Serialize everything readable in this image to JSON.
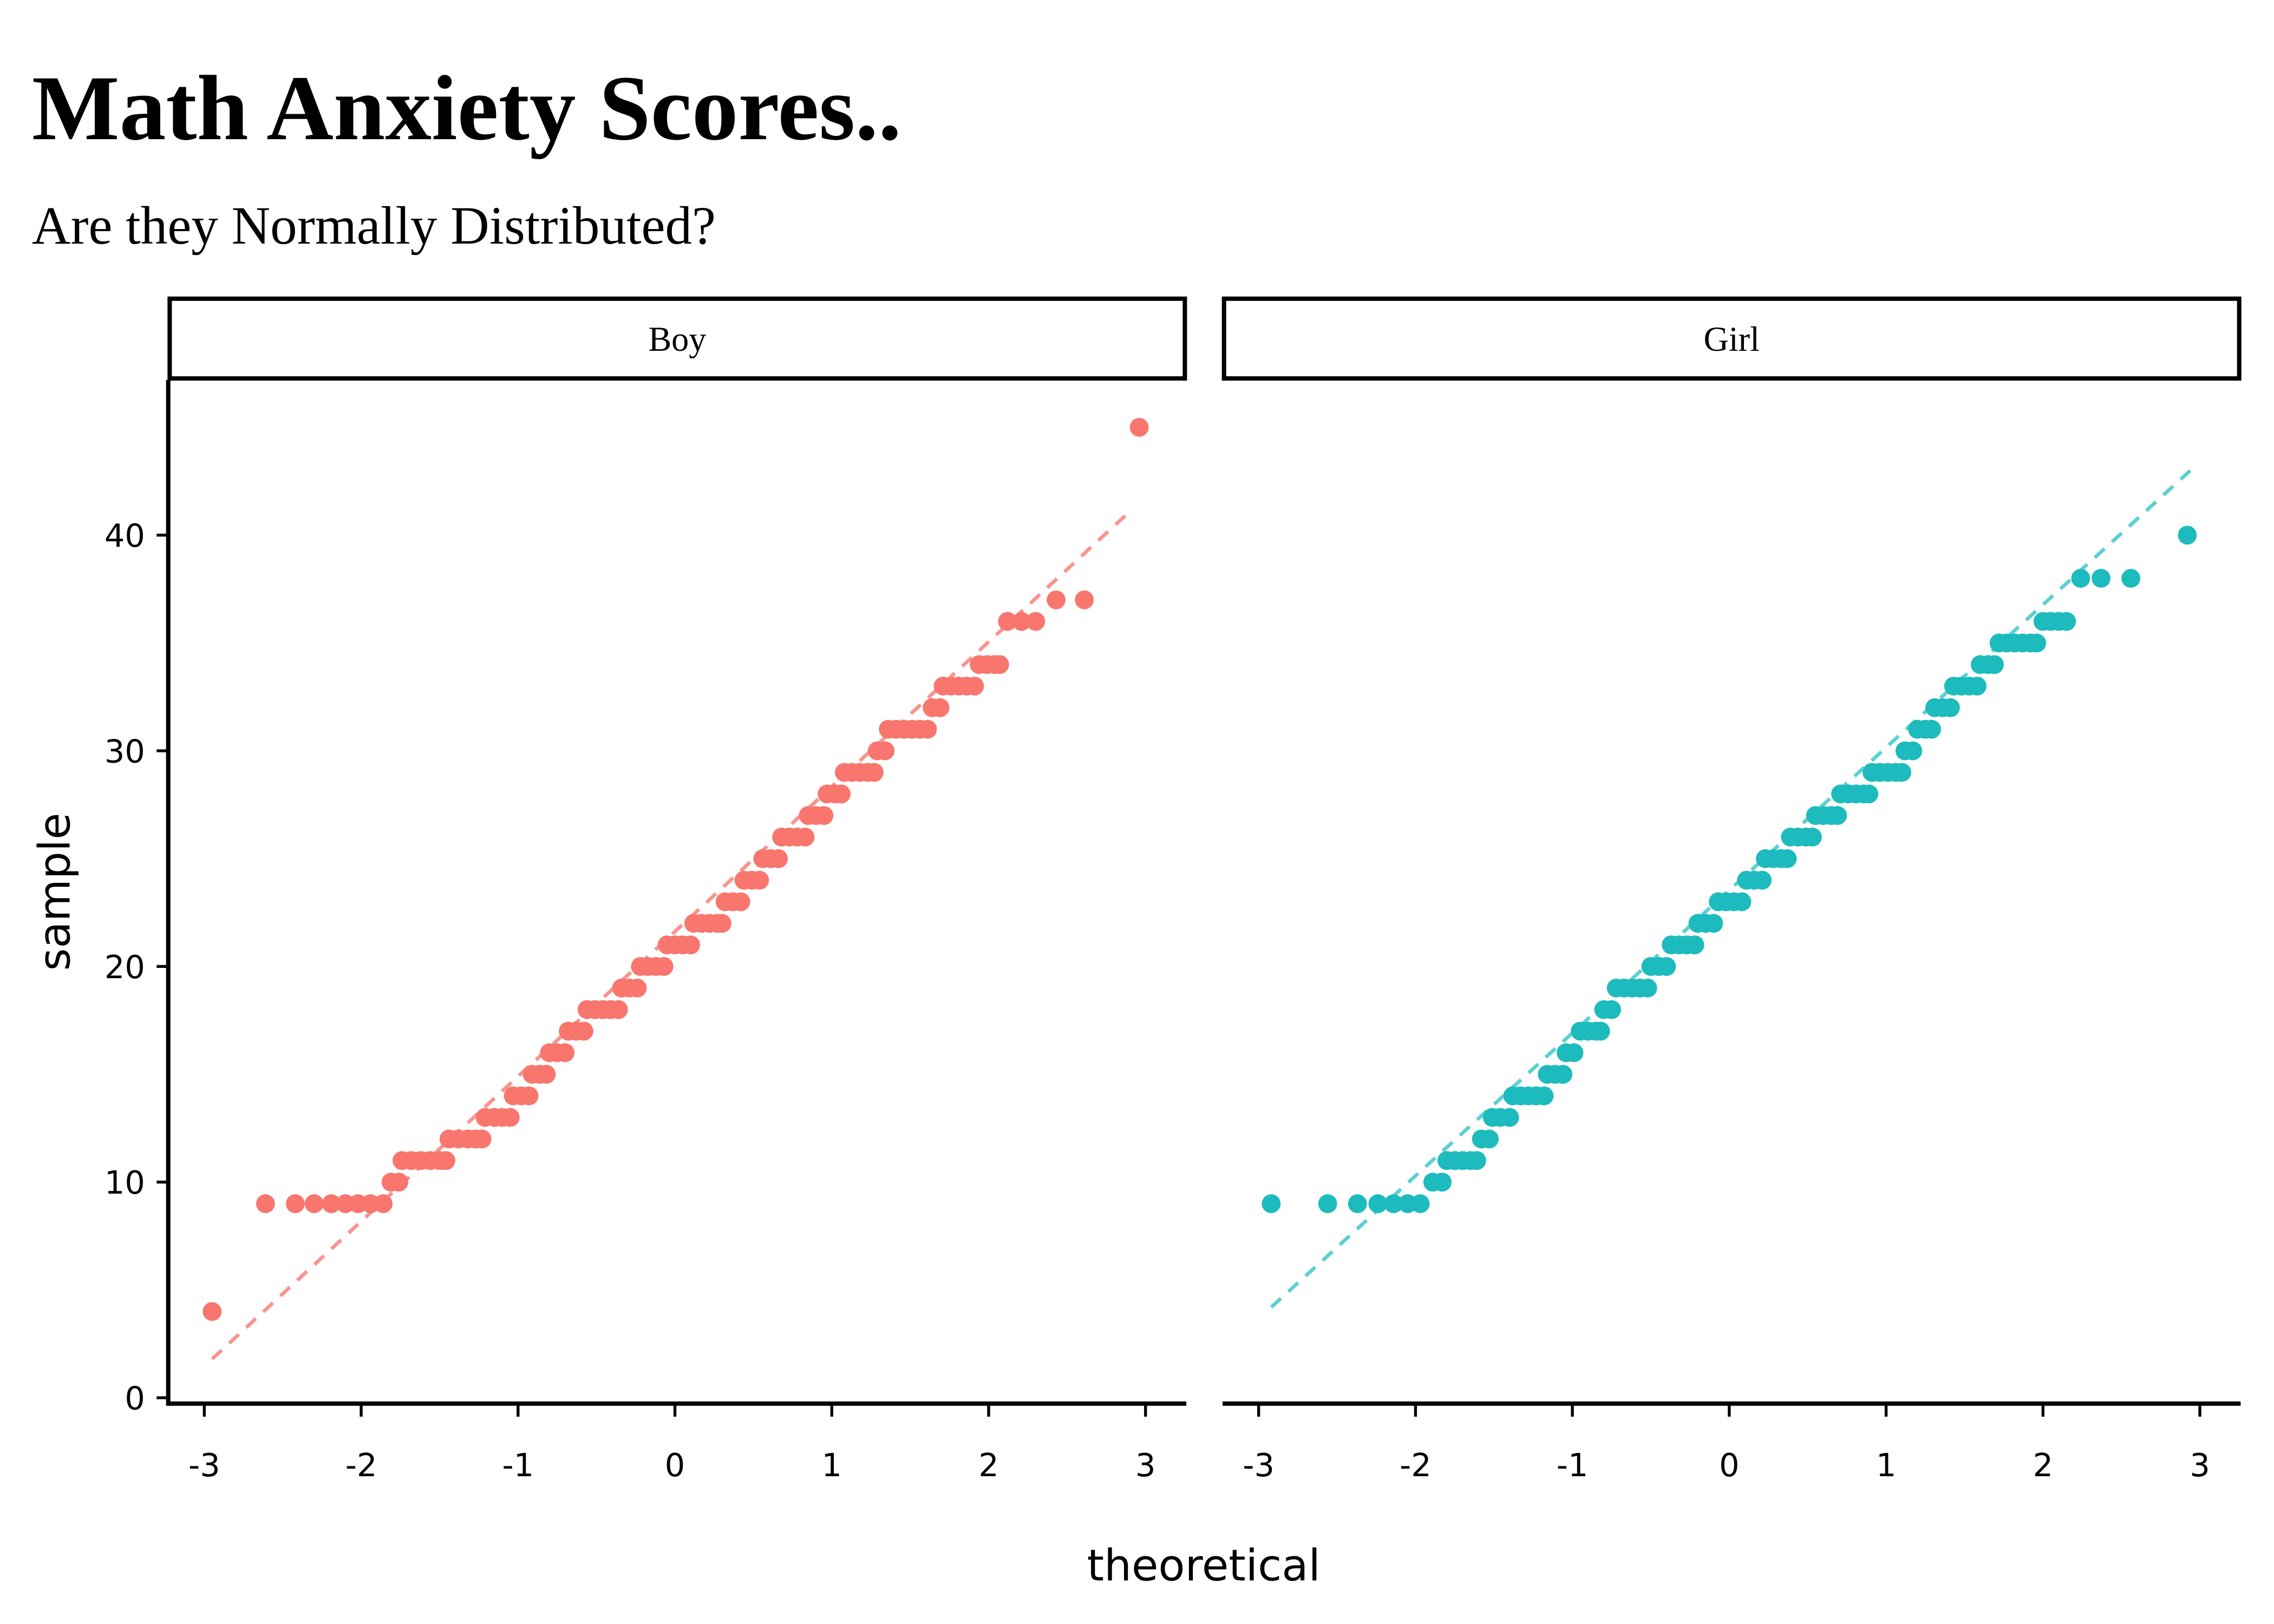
{
  "chart_data": {
    "type": "scatter",
    "title": "Math Anxiety Scores..",
    "subtitle": "Are they Normally Distributed?",
    "x_label": "theoretical",
    "y_label": "sample",
    "xlim": [
      -3.23,
      3.26
    ],
    "ylim": [
      -0.27,
      47.2
    ],
    "xticks": [
      -3,
      -2,
      -1,
      0,
      1,
      2,
      3
    ],
    "yticks": [
      0,
      10,
      20,
      30,
      40
    ],
    "series": [
      {
        "name": "Boy",
        "color": "#F8766D",
        "x": [
          -2.95,
          -2.61,
          -2.42,
          -2.3,
          -2.19,
          -2.1,
          -2.02,
          -1.94,
          -1.86,
          -1.81,
          -1.76,
          -1.74,
          -1.68,
          -1.62,
          -1.56,
          -1.5,
          -1.46,
          -1.44,
          -1.38,
          -1.32,
          -1.27,
          -1.23,
          -1.21,
          -1.15,
          -1.1,
          -1.05,
          -1.03,
          -0.98,
          -0.93,
          -0.91,
          -0.86,
          -0.82,
          -0.8,
          -0.75,
          -0.7,
          -0.68,
          -0.63,
          -0.58,
          -0.56,
          -0.51,
          -0.46,
          -0.41,
          -0.36,
          -0.34,
          -0.29,
          -0.24,
          -0.22,
          -0.17,
          -0.12,
          -0.07,
          -0.05,
          0,
          0.05,
          0.1,
          0.12,
          0.17,
          0.22,
          0.27,
          0.3,
          0.32,
          0.37,
          0.42,
          0.44,
          0.49,
          0.54,
          0.56,
          0.61,
          0.66,
          0.68,
          0.73,
          0.78,
          0.83,
          0.85,
          0.9,
          0.95,
          0.97,
          1.02,
          1.06,
          1.08,
          1.13,
          1.18,
          1.23,
          1.27,
          1.29,
          1.34,
          1.36,
          1.41,
          1.46,
          1.51,
          1.56,
          1.61,
          1.64,
          1.69,
          1.71,
          1.76,
          1.81,
          1.86,
          1.91,
          1.94,
          1.99,
          2.04,
          2.07,
          2.12,
          2.21,
          2.3,
          2.43,
          2.61,
          2.96
        ],
        "values": [
          4,
          9,
          9,
          9,
          9,
          9,
          9,
          9,
          9,
          10,
          10,
          11,
          11,
          11,
          11,
          11,
          11,
          12,
          12,
          12,
          12,
          12,
          13,
          13,
          13,
          13,
          14,
          14,
          14,
          15,
          15,
          15,
          16,
          16,
          16,
          17,
          17,
          17,
          18,
          18,
          18,
          18,
          18,
          19,
          19,
          19,
          20,
          20,
          20,
          20,
          21,
          21,
          21,
          21,
          22,
          22,
          22,
          22,
          22,
          23,
          23,
          23,
          24,
          24,
          24,
          25,
          25,
          25,
          26,
          26,
          26,
          26,
          27,
          27,
          27,
          28,
          28,
          28,
          29,
          29,
          29,
          29,
          29,
          30,
          30,
          31,
          31,
          31,
          31,
          31,
          31,
          32,
          32,
          33,
          33,
          33,
          33,
          33,
          34,
          34,
          34,
          34,
          36,
          36,
          36,
          37,
          37,
          45
        ],
        "line": {
          "x": [
            -2.95,
            2.9
          ],
          "y": [
            1.8,
            41.1
          ],
          "color": "#F7958E"
        }
      },
      {
        "name": "Girl",
        "color": "#1DBBBD",
        "x": [
          -2.92,
          -2.56,
          -2.37,
          -2.24,
          -2.14,
          -2.05,
          -1.97,
          -1.89,
          -1.83,
          -1.8,
          -1.75,
          -1.7,
          -1.65,
          -1.61,
          -1.58,
          -1.53,
          -1.51,
          -1.46,
          -1.4,
          -1.38,
          -1.33,
          -1.28,
          -1.23,
          -1.18,
          -1.16,
          -1.11,
          -1.06,
          -1.04,
          -0.99,
          -0.95,
          -0.9,
          -0.85,
          -0.82,
          -0.8,
          -0.75,
          -0.72,
          -0.67,
          -0.62,
          -0.57,
          -0.52,
          -0.5,
          -0.45,
          -0.4,
          -0.37,
          -0.32,
          -0.27,
          -0.22,
          -0.2,
          -0.15,
          -0.1,
          -0.07,
          -0.02,
          0.03,
          0.08,
          0.11,
          0.16,
          0.21,
          0.23,
          0.28,
          0.33,
          0.37,
          0.39,
          0.44,
          0.49,
          0.53,
          0.55,
          0.6,
          0.65,
          0.69,
          0.71,
          0.76,
          0.81,
          0.86,
          0.89,
          0.91,
          0.96,
          1.01,
          1.06,
          1.1,
          1.12,
          1.17,
          1.2,
          1.25,
          1.29,
          1.31,
          1.36,
          1.41,
          1.43,
          1.48,
          1.53,
          1.58,
          1.6,
          1.65,
          1.69,
          1.72,
          1.77,
          1.82,
          1.87,
          1.92,
          1.96,
          2,
          2.05,
          2.1,
          2.15,
          2.24,
          2.37,
          2.56,
          2.92
        ],
        "values": [
          9,
          9,
          9,
          9,
          9,
          9,
          9,
          10,
          10,
          11,
          11,
          11,
          11,
          11,
          12,
          12,
          13,
          13,
          13,
          14,
          14,
          14,
          14,
          14,
          15,
          15,
          15,
          16,
          16,
          17,
          17,
          17,
          17,
          18,
          18,
          19,
          19,
          19,
          19,
          19,
          20,
          20,
          20,
          21,
          21,
          21,
          21,
          22,
          22,
          22,
          23,
          23,
          23,
          23,
          24,
          24,
          24,
          25,
          25,
          25,
          25,
          26,
          26,
          26,
          26,
          27,
          27,
          27,
          27,
          28,
          28,
          28,
          28,
          28,
          29,
          29,
          29,
          29,
          29,
          30,
          30,
          31,
          31,
          31,
          32,
          32,
          32,
          33,
          33,
          33,
          33,
          34,
          34,
          34,
          35,
          35,
          35,
          35,
          35,
          35,
          36,
          36,
          36,
          36,
          38,
          38,
          38,
          40
        ],
        "line": {
          "x": [
            -2.92,
            2.94
          ],
          "y": [
            4.2,
            43.0
          ],
          "color": "#5DD0D3"
        }
      }
    ]
  }
}
